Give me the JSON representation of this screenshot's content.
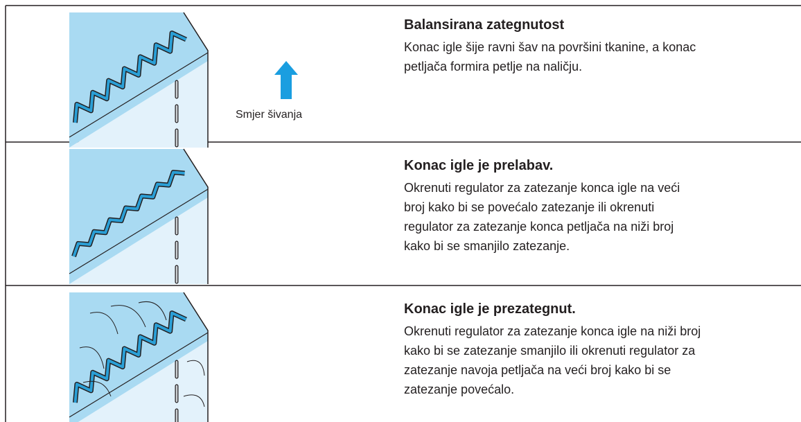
{
  "rows": [
    {
      "label": "Smjer šivanja",
      "title": "Balansirana zategnutost",
      "lines": [
        "Konac igle šije ravni šav na površini tkanine, a konac",
        "petljača formira petlje na naličju."
      ]
    },
    {
      "title": "Konac igle je prelabav.",
      "lines": [
        "Okrenuti regulator za zatezanje konca igle na veći",
        "broj kako bi se povećalo zatezanje ili okrenuti",
        "regulator za zatezanje konca petljača na niži broj",
        "kako bi se smanjilo zatezanje."
      ]
    },
    {
      "title": "Konac igle je prezategnut.",
      "lines": [
        "Okrenuti regulator za zatezanje konca igle na niži broj",
        "kako bi se zatezanje smanjilo ili okrenuti regulator za",
        "zatezanje navoja petljača na veći broj kako bi se",
        "zatezanje povećalo."
      ]
    }
  ]
}
